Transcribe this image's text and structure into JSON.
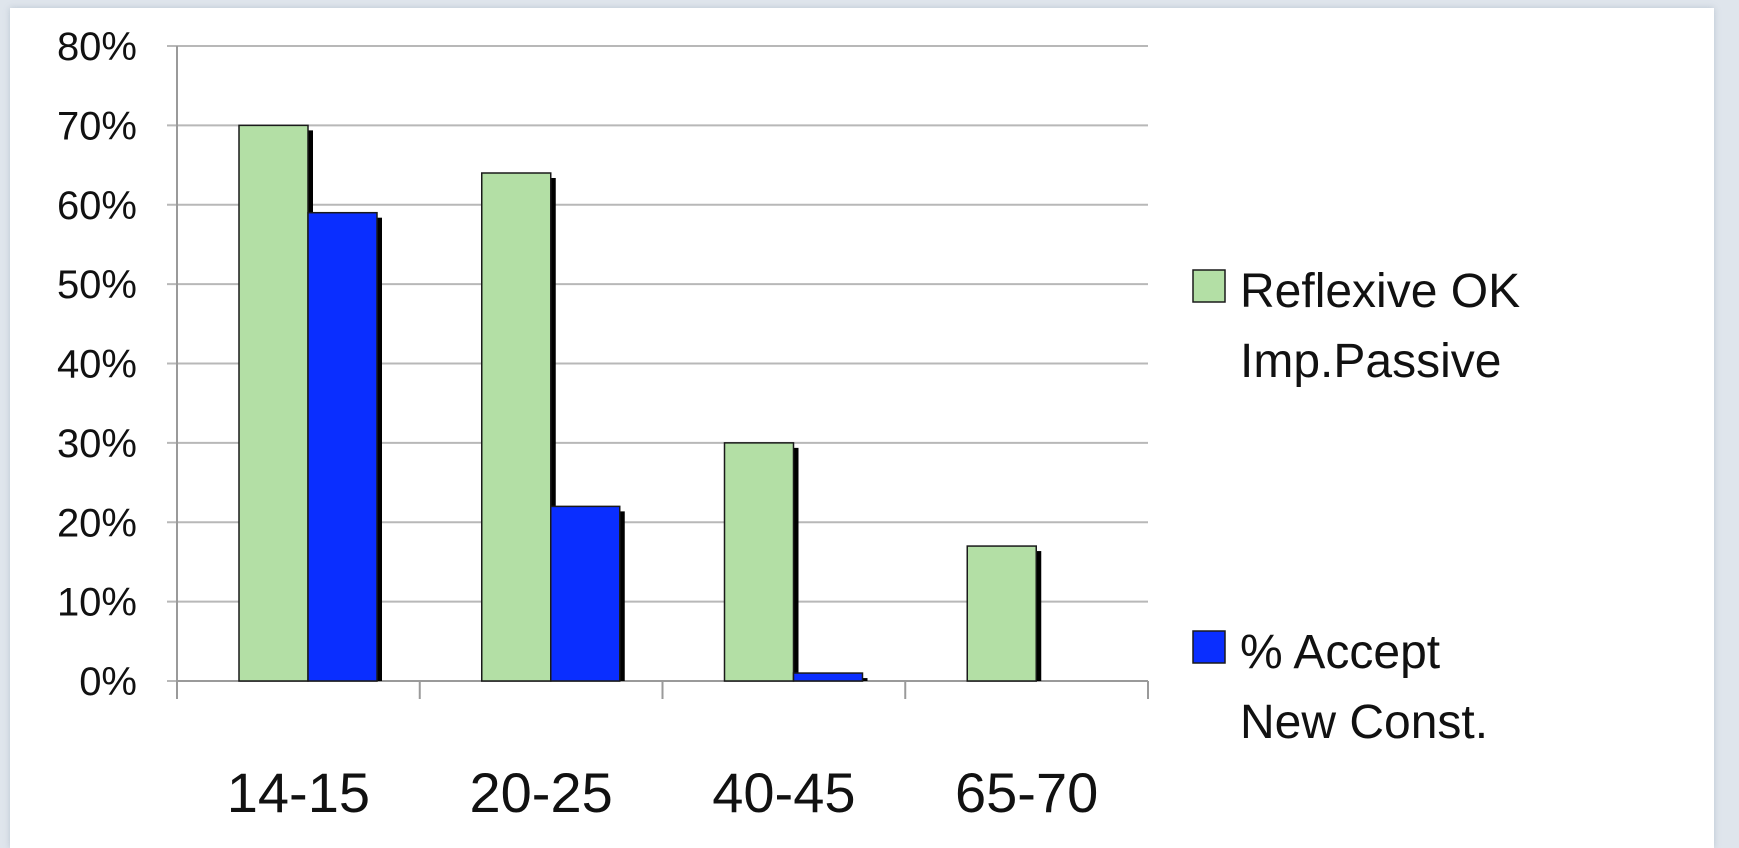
{
  "chart_data": {
    "type": "bar",
    "categories": [
      "14-15",
      "20-25",
      "40-45",
      "65-70"
    ],
    "series": [
      {
        "name": "Reflexive OK Imp.Passive",
        "legend_lines": [
          "Reflexive OK",
          "Imp.Passive"
        ],
        "color": "#b3dfa5",
        "values": [
          70,
          64,
          30,
          17
        ]
      },
      {
        "name": "% Accept New Const.",
        "legend_lines": [
          "% Accept",
          "New Const."
        ],
        "color": "#0a2eff",
        "values": [
          59,
          22,
          1,
          0
        ]
      }
    ],
    "ylim": [
      0,
      80
    ],
    "yticks": [
      "0%",
      "10%",
      "20%",
      "30%",
      "40%",
      "50%",
      "60%",
      "70%",
      "80%"
    ],
    "grid": true,
    "legend_position": "right",
    "title": "",
    "xlabel": "",
    "ylabel": ""
  }
}
